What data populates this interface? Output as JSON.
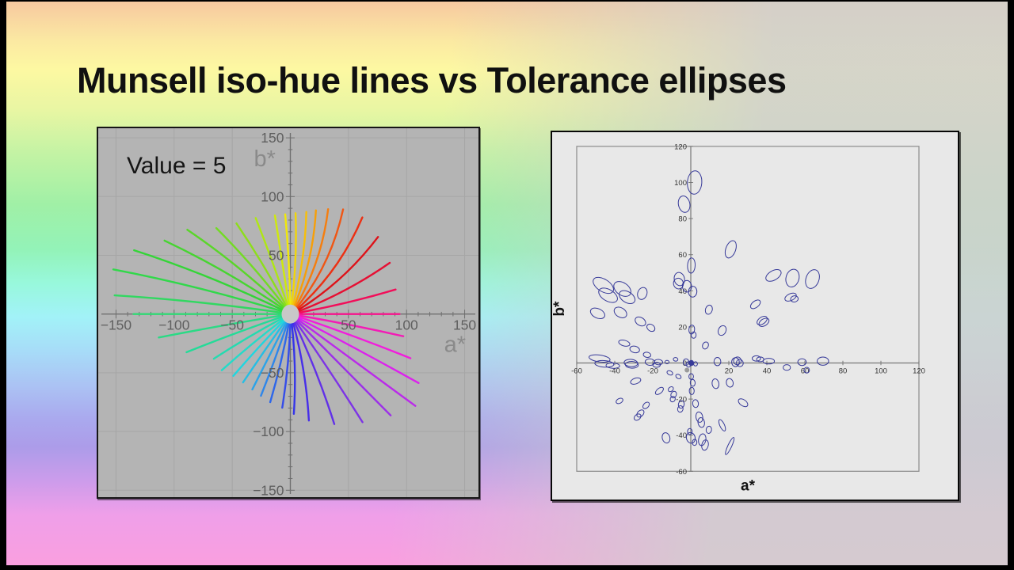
{
  "slide": {
    "title": "Munsell iso-hue lines vs Tolerance ellipses"
  },
  "left_chart": {
    "annotation": "Value = 5",
    "xlabel": "a*",
    "ylabel": "b*",
    "background": "#b4b4b4",
    "grid_color": "#a6a6a6",
    "axis_color": "#6f6f6f",
    "tick_label_color": "#5f5f5f",
    "axis_title_color": "#8a8a8a",
    "annotation_color": "#151515",
    "hole_color": "#c8c8c8",
    "major_ticks": [
      -150,
      -100,
      -50,
      50,
      100,
      150
    ],
    "minor_tick_step": 10,
    "xlim": [
      -150,
      150
    ],
    "ylim": [
      -150,
      150
    ]
  },
  "right_chart": {
    "xlabel": "a*",
    "ylabel": "b*",
    "background": "#e8e8e8",
    "frame_color": "#8a8a8a",
    "axis_color": "#777777",
    "tick_label_color": "#333333",
    "axis_title_color": "#111111",
    "ellipse_color": "#373a99",
    "x_ticks": [
      -60,
      -40,
      -20,
      20,
      40,
      60,
      80,
      100,
      120
    ],
    "y_ticks": [
      120,
      100,
      80,
      60,
      40,
      20,
      0,
      -20,
      -40,
      -60
    ],
    "xlim": [
      -60,
      120
    ],
    "ylim": [
      -60,
      120
    ]
  },
  "chart_data": [
    {
      "type": "line",
      "title": "Value = 5",
      "xlabel": "a*",
      "ylabel": "b*",
      "xlim": [
        -150,
        150
      ],
      "ylim": [
        -150,
        150
      ],
      "grid": true,
      "description": "40 Munsell iso-hue lines at Value 5 radiating from the origin of the CIELAB a*b* plane; each line starts at radius 8 with given start angle (deg CCW from +a*), reaches the given end radius, bending by 'bend' degrees, drawn in its Munsell hue colour",
      "lines": [
        {
          "angle": 90,
          "radius": 85,
          "bend": 3,
          "color": "hsl(58,92%,49%)"
        },
        {
          "angle": 81,
          "radius": 86,
          "bend": 6,
          "color": "hsl(53,92%,49%)"
        },
        {
          "angle": 72,
          "radius": 88,
          "bend": 9,
          "color": "hsl(46,94%,50%)"
        },
        {
          "angle": 63,
          "radius": 91,
          "bend": 13,
          "color": "hsl(38,94%,50%)"
        },
        {
          "angle": 54,
          "radius": 95,
          "bend": 16,
          "color": "hsl(29,92%,51%)"
        },
        {
          "angle": 45,
          "radius": 100,
          "bend": 18,
          "color": "hsl(18,88%,51%)"
        },
        {
          "angle": 36,
          "radius": 103,
          "bend": 17,
          "color": "hsl(8,85%,50%)"
        },
        {
          "angle": 27,
          "radius": 100,
          "bend": 14,
          "color": "hsl(358,85%,47%)"
        },
        {
          "angle": 18,
          "radius": 96,
          "bend": 9,
          "color": "hsl(350,88%,48%)"
        },
        {
          "angle": 9,
          "radius": 93,
          "bend": 4,
          "color": "hsl(340,90%,50%)"
        },
        {
          "angle": 0,
          "radius": 94,
          "bend": 0,
          "color": "hsl(328,92%,52%)"
        },
        {
          "angle": -9,
          "radius": 99,
          "bend": -2,
          "color": "hsl(317,90%,53%)"
        },
        {
          "angle": -18,
          "radius": 110,
          "bend": -2,
          "color": "hsl(306,88%,53%)"
        },
        {
          "angle": -27,
          "radius": 125,
          "bend": -1,
          "color": "hsl(295,85%,53%)"
        },
        {
          "angle": -36,
          "radius": 133,
          "bend": 0,
          "color": "hsl(285,82%,54%)"
        },
        {
          "angle": -45,
          "radius": 122,
          "bend": 0,
          "color": "hsl(275,80%,55%)"
        },
        {
          "angle": -54,
          "radius": 111,
          "bend": -2,
          "color": "hsl(265,78%,55%)"
        },
        {
          "angle": -63,
          "radius": 101,
          "bend": -5,
          "color": "hsl(256,80%,55%)"
        },
        {
          "angle": -72,
          "radius": 92,
          "bend": -8,
          "color": "hsl(248,82%,55%)"
        },
        {
          "angle": -81,
          "radius": 85,
          "bend": -7,
          "color": "hsl(240,80%,56%)"
        },
        {
          "angle": -90,
          "radius": 80,
          "bend": -5,
          "color": "hsl(232,80%,56%)"
        },
        {
          "angle": -99,
          "radius": 77,
          "bend": -4,
          "color": "hsl(222,82%,55%)"
        },
        {
          "angle": -108,
          "radius": 74,
          "bend": -2,
          "color": "hsl(212,82%,55%)"
        },
        {
          "angle": -117,
          "radius": 72,
          "bend": 0,
          "color": "hsl(202,80%,54%)"
        },
        {
          "angle": -126,
          "radius": 71,
          "bend": 1,
          "color": "hsl(192,78%,52%)"
        },
        {
          "angle": -135,
          "radius": 72,
          "bend": 2,
          "color": "hsl(183,75%,50%)"
        },
        {
          "angle": -144,
          "radius": 76,
          "bend": 3,
          "color": "hsl(174,72%,50%)"
        },
        {
          "angle": -153,
          "radius": 76,
          "bend": 3,
          "color": "hsl(166,72%,50%)"
        },
        {
          "angle": -162,
          "radius": 95,
          "bend": 2,
          "color": "hsl(158,72%,50%)"
        },
        {
          "angle": -171,
          "radius": 115,
          "bend": 1,
          "color": "hsl(151,70%,51%)"
        },
        {
          "angle": 180,
          "radius": 135,
          "bend": 0,
          "color": "hsl(144,68%,52%)"
        },
        {
          "angle": 171,
          "radius": 152,
          "bend": 3,
          "color": "hsl(137,68%,52%)"
        },
        {
          "angle": 162,
          "radius": 157,
          "bend": 4,
          "color": "hsl(129,68%,52%)"
        },
        {
          "angle": 153,
          "radius": 145,
          "bend": 5,
          "color": "hsl(121,66%,52%)"
        },
        {
          "angle": 144,
          "radius": 125,
          "bend": 6,
          "color": "hsl(112,66%,51%)"
        },
        {
          "angle": 135,
          "radius": 114,
          "bend": 6,
          "color": "hsl(103,68%,50%)"
        },
        {
          "angle": 126,
          "radius": 97,
          "bend": 5,
          "color": "hsl(94,72%,50%)"
        },
        {
          "angle": 117,
          "radius": 90,
          "bend": 4,
          "color": "hsl(85,78%,49%)"
        },
        {
          "angle": 108,
          "radius": 87,
          "bend": 2,
          "color": "hsl(76,85%,49%)"
        },
        {
          "angle": 99,
          "radius": 85,
          "bend": 0,
          "color": "hsl(67,90%,48%)"
        }
      ]
    },
    {
      "type": "scatter",
      "title": "",
      "xlabel": "a*",
      "ylabel": "b*",
      "xlim": [
        -60,
        120
      ],
      "ylim": [
        -60,
        120
      ],
      "grid": false,
      "description": "Colour tolerance ellipses in the a*b* plane; each entry is [a*, b*, semi-axis-a, semi-axis-b, tilt-deg-clockwise, filled(0/1)]",
      "ellipses": [
        [
          2,
          100,
          3.8,
          6.5,
          4,
          0
        ],
        [
          -3.5,
          88,
          3,
          4.6,
          -12,
          0
        ],
        [
          21,
          63,
          2.6,
          5,
          20,
          0
        ],
        [
          0.3,
          54,
          2,
          4.2,
          3,
          0
        ],
        [
          -6,
          46.5,
          2.7,
          3.7,
          -12,
          0
        ],
        [
          -6.5,
          44,
          2.6,
          3,
          -15,
          0
        ],
        [
          -2,
          42.5,
          2.4,
          3.2,
          -5,
          0
        ],
        [
          1,
          39.5,
          2.2,
          3,
          3,
          0
        ],
        [
          43.5,
          48.5,
          4.4,
          2.6,
          -30,
          0
        ],
        [
          53.5,
          47,
          3.4,
          5,
          15,
          0
        ],
        [
          64,
          46.5,
          3.4,
          5.4,
          20,
          0
        ],
        [
          -46,
          43,
          6,
          3.4,
          32,
          0
        ],
        [
          -43.5,
          37.5,
          5.4,
          3.2,
          30,
          0
        ],
        [
          -36,
          41,
          5,
          3.4,
          35,
          0
        ],
        [
          -33.5,
          36.5,
          4.6,
          3,
          32,
          0
        ],
        [
          -25.5,
          38.5,
          2.4,
          3.4,
          20,
          0
        ],
        [
          -49,
          27.5,
          4,
          2.6,
          25,
          0
        ],
        [
          -37,
          28,
          3.6,
          2.6,
          32,
          0
        ],
        [
          -26.5,
          23,
          3,
          2.2,
          32,
          0
        ],
        [
          -21,
          19.5,
          2.3,
          1.8,
          35,
          0
        ],
        [
          52.5,
          36.5,
          3.2,
          1.9,
          -25,
          0
        ],
        [
          54.5,
          35.5,
          2,
          1.7,
          -10,
          0
        ],
        [
          34,
          32.5,
          3,
          1.8,
          -38,
          0
        ],
        [
          9.5,
          29.5,
          1.8,
          2.6,
          18,
          0
        ],
        [
          37.5,
          23.5,
          3,
          1.9,
          -35,
          0
        ],
        [
          38.5,
          22.5,
          2.9,
          1.9,
          -33,
          0
        ],
        [
          0.5,
          18.5,
          1.5,
          2.5,
          5,
          0
        ],
        [
          1.5,
          15.5,
          1.3,
          1.8,
          0,
          0
        ],
        [
          16.5,
          18,
          2,
          2.8,
          25,
          0
        ],
        [
          7.7,
          9.7,
          1.5,
          2,
          25,
          0
        ],
        [
          -35,
          11,
          3,
          1.6,
          15,
          0
        ],
        [
          -29.5,
          7.5,
          2.6,
          1.8,
          14,
          0
        ],
        [
          -23,
          4.5,
          2,
          1.4,
          10,
          0
        ],
        [
          -17,
          0.5,
          2.2,
          1.5,
          5,
          0
        ],
        [
          -8,
          2,
          1.2,
          1,
          8,
          0
        ],
        [
          -48,
          2.5,
          5.6,
          1.9,
          8,
          0
        ],
        [
          -45.5,
          -0.5,
          5,
          1.8,
          4,
          0
        ],
        [
          -41,
          -1.5,
          3.6,
          1.5,
          3,
          0
        ],
        [
          -31.5,
          0,
          3.6,
          2,
          5,
          0
        ],
        [
          -31,
          -1,
          3.4,
          1.9,
          2,
          0
        ],
        [
          -21.5,
          0.5,
          2.5,
          1.8,
          4,
          0
        ],
        [
          -18,
          -1,
          2,
          1.4,
          0,
          0
        ],
        [
          -12.5,
          0.5,
          1.1,
          0.9,
          0,
          0
        ],
        [
          -2.5,
          0.5,
          1.5,
          1.8,
          0,
          0
        ],
        [
          -1.2,
          -0.8,
          1.2,
          1.5,
          0,
          0
        ],
        [
          0.3,
          0,
          1.2,
          1.4,
          0,
          1
        ],
        [
          2.5,
          -0.5,
          1,
          1.2,
          0,
          0
        ],
        [
          14,
          0.8,
          1.8,
          2.3,
          0,
          0
        ],
        [
          23.5,
          0.5,
          2,
          2.5,
          0,
          0
        ],
        [
          24.5,
          1.2,
          2,
          2.2,
          25,
          0
        ],
        [
          25.8,
          0,
          1.8,
          2,
          -20,
          0
        ],
        [
          34.5,
          2.5,
          2.2,
          1.5,
          0,
          0
        ],
        [
          36.5,
          2,
          1.9,
          1.3,
          0,
          0
        ],
        [
          41,
          1,
          3,
          1.6,
          0,
          0
        ],
        [
          50.5,
          -2.5,
          1.9,
          1.6,
          0,
          0
        ],
        [
          58.5,
          0.5,
          2.2,
          1.9,
          0,
          0
        ],
        [
          61,
          -4,
          1.4,
          1.6,
          0,
          0
        ],
        [
          69.5,
          1,
          3,
          2.3,
          0,
          0
        ],
        [
          -11,
          -5.5,
          1.6,
          1.1,
          25,
          0
        ],
        [
          -6.5,
          -7.5,
          1.5,
          1.1,
          30,
          0
        ],
        [
          0.2,
          -7.5,
          1.2,
          1.6,
          0,
          0
        ],
        [
          1,
          -11,
          1.3,
          1.9,
          -5,
          0
        ],
        [
          0.5,
          -15.5,
          1.3,
          2,
          0,
          0
        ],
        [
          13,
          -11.5,
          1.8,
          2.7,
          -10,
          0
        ],
        [
          20.5,
          -11,
          1.8,
          2.4,
          -15,
          0
        ],
        [
          -29,
          -10,
          2.8,
          1.6,
          -19,
          0
        ],
        [
          -16.5,
          -15.5,
          2.5,
          1.4,
          -40,
          0
        ],
        [
          -10.5,
          -14.5,
          1.5,
          1.2,
          -40,
          0
        ],
        [
          -9,
          -17.5,
          1.4,
          1.9,
          25,
          0
        ],
        [
          -9.5,
          -20,
          1.3,
          1.6,
          25,
          0
        ],
        [
          -37.5,
          -21,
          1.9,
          1.3,
          -29,
          0
        ],
        [
          -23.5,
          -23.5,
          2,
          1.4,
          -45,
          0
        ],
        [
          -26.5,
          -28,
          2.2,
          1.6,
          -45,
          0
        ],
        [
          -28,
          -30,
          2,
          1.5,
          -40,
          0
        ],
        [
          -5,
          -23,
          1.5,
          2.1,
          12,
          0
        ],
        [
          -5.5,
          -25.5,
          1.4,
          1.8,
          12,
          0
        ],
        [
          2.5,
          -22.5,
          1.5,
          2.2,
          -6,
          0
        ],
        [
          27.5,
          -22,
          2.8,
          1.7,
          35,
          0
        ],
        [
          4.5,
          -30,
          1.8,
          2.9,
          -10,
          0
        ],
        [
          5.5,
          -33,
          1.7,
          2.7,
          -10,
          0
        ],
        [
          16.5,
          -34.5,
          1.2,
          3.4,
          -25,
          0
        ],
        [
          9.5,
          -37,
          1.4,
          2,
          10,
          0
        ],
        [
          -13,
          -41.5,
          2,
          2.9,
          -15,
          0
        ],
        [
          -0.5,
          -38,
          1.2,
          1.7,
          0,
          0
        ],
        [
          0,
          -41.5,
          2.3,
          3,
          -15,
          0
        ],
        [
          2,
          -44,
          1.2,
          1.7,
          5,
          0
        ],
        [
          6,
          -42.5,
          1.9,
          3.3,
          10,
          0
        ],
        [
          7.5,
          -45.5,
          1.7,
          2.9,
          12,
          0
        ],
        [
          20.5,
          -46,
          1,
          5.2,
          25,
          0
        ]
      ]
    }
  ]
}
